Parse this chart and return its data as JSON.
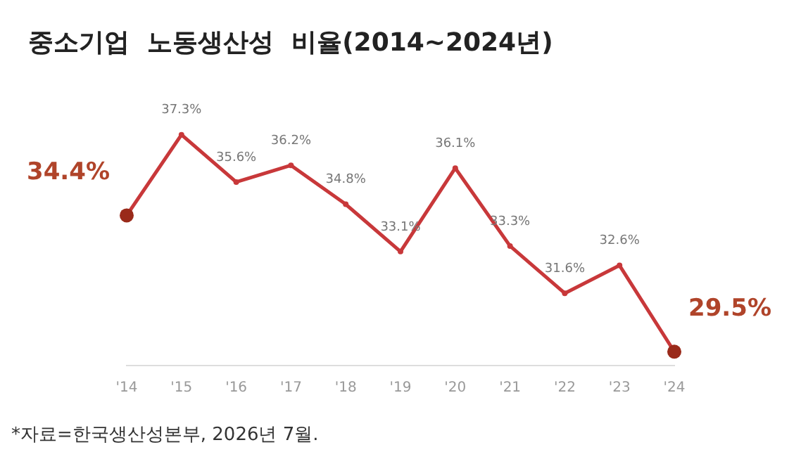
{
  "chart_data": {
    "type": "line",
    "title": "중소기업  노동생산성  비율(2014~2024년)",
    "categories": [
      "'14",
      "'15",
      "'16",
      "'17",
      "'18",
      "'19",
      "'20",
      "'21",
      "'22",
      "'23",
      "'24"
    ],
    "series": [
      {
        "color": "#c8383a",
        "values": [
          34.4,
          37.3,
          35.6,
          36.2,
          34.8,
          33.1,
          36.1,
          33.3,
          31.6,
          32.6,
          29.5
        ],
        "value_labels": [
          "34.4%",
          "37.3%",
          "35.6%",
          "36.2%",
          "34.8%",
          "33.1%",
          "36.1%",
          "33.3%",
          "31.6%",
          "32.6%",
          "29.5%"
        ]
      }
    ],
    "marker": "circle",
    "grid": false,
    "legend": false,
    "tick_labels": "x",
    "annotations": [
      "*자료=한국생산성본부, 2026년 7월."
    ]
  }
}
